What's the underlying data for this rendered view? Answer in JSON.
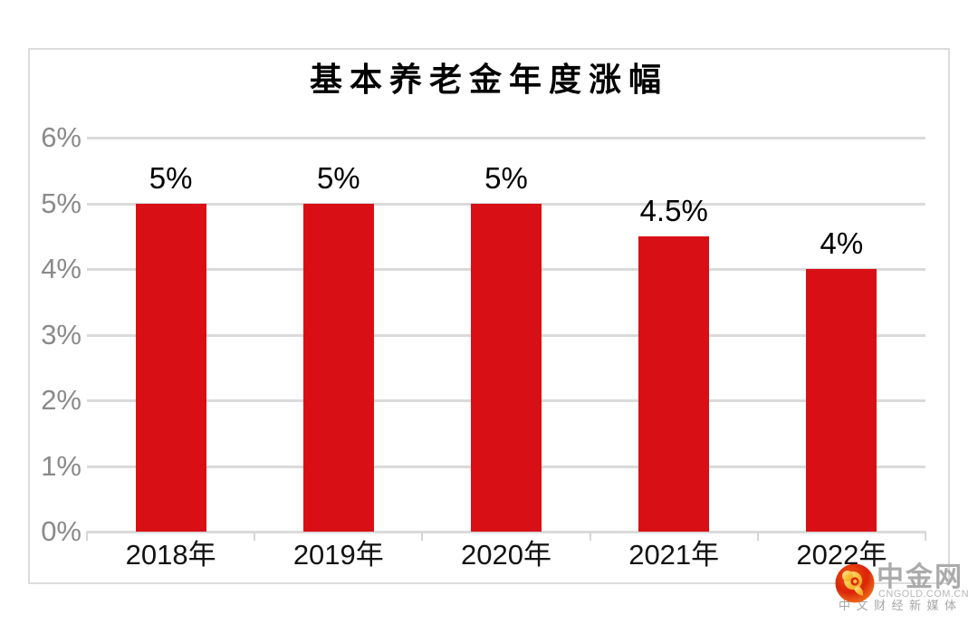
{
  "chart_data": {
    "type": "bar",
    "title": "基本养老金年度涨幅",
    "categories": [
      "2018年",
      "2019年",
      "2020年",
      "2021年",
      "2022年"
    ],
    "values": [
      5,
      5,
      5,
      4.5,
      4
    ],
    "bar_labels": [
      "5%",
      "5%",
      "5%",
      "4.5%",
      "4%"
    ],
    "y_ticks": [
      "6%",
      "5%",
      "4%",
      "3%",
      "2%",
      "1%",
      "0%"
    ],
    "ylim": [
      0,
      6
    ],
    "xlabel": "",
    "ylabel": "",
    "grid": true,
    "legend": false,
    "bar_color": "#d90f16",
    "grid_color": "#dadada",
    "ytick_color": "#8a8a8a",
    "xtick_color": "#111111"
  },
  "watermark": {
    "brand": "中金网",
    "domain": "CNGOLD.COM.CN",
    "tagline": "中文财经新媒体",
    "logo": "cngold-cloud-logo"
  }
}
